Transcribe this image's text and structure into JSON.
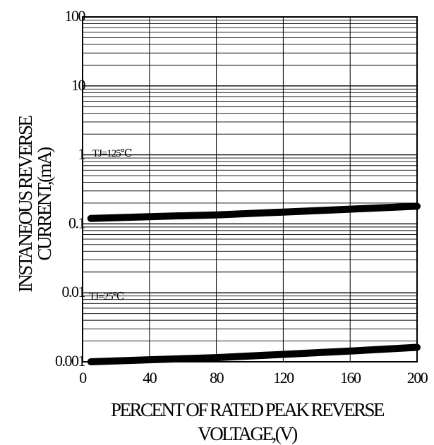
{
  "chart_data": {
    "type": "line",
    "title": "",
    "xlabel_lines": [
      "PERCENT OF RATED PEAK REVERSE",
      "VOLTAGE,(V)"
    ],
    "ylabel_lines": [
      "INSTANEOUS REVERSE",
      "CURRENT,(mA)"
    ],
    "xlim": [
      0,
      200
    ],
    "ylim": [
      0.001,
      100
    ],
    "y_scale": "log",
    "grid": true,
    "x_ticks": [
      {
        "value": 0,
        "label": "0"
      },
      {
        "value": 40,
        "label": "40"
      },
      {
        "value": 80,
        "label": "80"
      },
      {
        "value": 120,
        "label": "120"
      },
      {
        "value": 160,
        "label": "160"
      },
      {
        "value": 200,
        "label": "200"
      }
    ],
    "y_ticks": [
      {
        "value": 0.001,
        "label": "0.001"
      },
      {
        "value": 0.01,
        "label": "0.01"
      },
      {
        "value": 0.1,
        "label": "0.1"
      },
      {
        "value": 1,
        "label": "1"
      },
      {
        "value": 10,
        "label": "10"
      },
      {
        "value": 100,
        "label": "100"
      }
    ],
    "series": [
      {
        "x": [
          5,
          40,
          80,
          120,
          160,
          200
        ],
        "y": [
          0.12,
          0.127,
          0.135,
          0.148,
          0.163,
          0.18
        ]
      },
      {
        "x": [
          5,
          40,
          80,
          120,
          160,
          200
        ],
        "y": [
          0.001,
          0.00107,
          0.00115,
          0.00128,
          0.00143,
          0.00162
        ]
      }
    ],
    "annotations": [
      {
        "text": "TJ=125℃",
        "x": 5,
        "y": 0.95
      },
      {
        "text": "TJ=25℃",
        "x": 3,
        "y": 0.0079
      }
    ]
  }
}
